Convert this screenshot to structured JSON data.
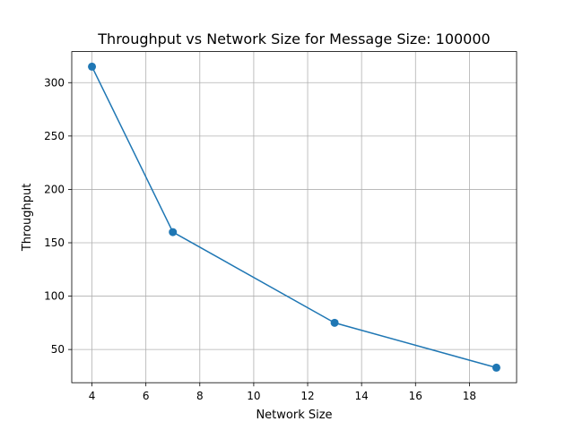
{
  "chart_data": {
    "type": "line",
    "title": "Throughput vs Network Size for Message Size: 100000",
    "xlabel": "Network Size",
    "ylabel": "Throughput",
    "x": [
      4,
      7,
      13,
      19
    ],
    "series": [
      {
        "values": [
          315,
          160,
          75,
          33
        ],
        "color": "#1f77b4",
        "marker": "circle"
      }
    ],
    "xlim": [
      3.25,
      19.75
    ],
    "ylim": [
      18.9,
      329.1
    ],
    "xticks": [
      4,
      6,
      8,
      10,
      12,
      14,
      16,
      18
    ],
    "yticks": [
      50,
      100,
      150,
      200,
      250,
      300
    ],
    "grid": true
  }
}
